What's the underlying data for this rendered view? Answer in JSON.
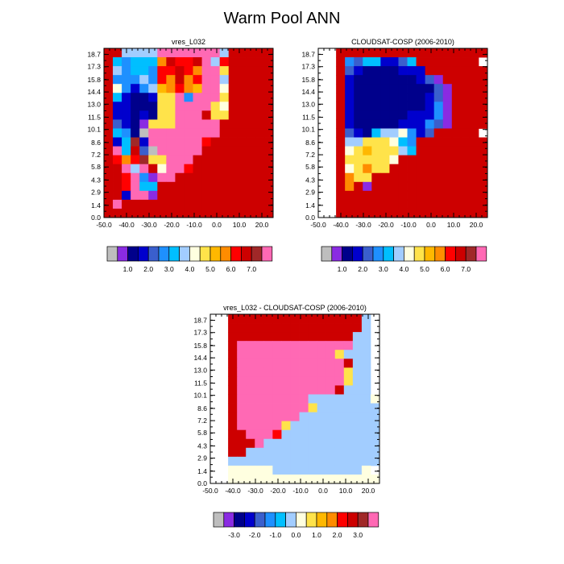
{
  "title": "Warm Pool ANN",
  "palette": [
    "#bebebe",
    "#8a2be2",
    "#00008b",
    "#0000cd",
    "#3a5fcd",
    "#1e90ff",
    "#00bfff",
    "#a2cdff",
    "#ffffe0",
    "#ffe34a",
    "#ffb800",
    "#ff8c00",
    "#ff0000",
    "#cd0000",
    "#a02828",
    "#ff69b4"
  ],
  "chart_data": [
    {
      "type": "heatmap",
      "title": "vres_L032",
      "x_ticks": [
        "-50.0",
        "-40.0",
        "-30.0",
        "-20.0",
        "-10.0",
        "0.0",
        "10.0",
        "20.0"
      ],
      "y_ticks": [
        "0.0",
        "1.4",
        "2.9",
        "4.3",
        "5.8",
        "7.2",
        "8.6",
        "10.1",
        "11.5",
        "13.0",
        "14.4",
        "15.8",
        "17.3",
        "18.7"
      ],
      "colorbar_labels": [
        "1.0",
        "2.0",
        "3.0",
        "4.0",
        "5.0",
        "6.0",
        "7.0"
      ],
      "grid": [
        "dd7777fffffff7ddddd",
        "d65666bdccdf7cddddd",
        "d75665ccdcbff9ddddd",
        "d55575cbdbcff7ddddd",
        "d85357abcbaff8ddddd",
        "d6322399f5fff9ddddd",
        "d3322299ffff98ddddd",
        "d3323299fffd99ddddd",
        "d4321999fffffdddddd",
        "d6520ffffffffdddddd",
        "d36e3ffffffcddddddd",
        "df6d40fffffdddddddd",
        "dcbce99fffddddddddd",
        "ddf7fd8ffcddddddddd",
        "ddcf51ffddddddddddd",
        "ddcf66ddddddddddddd",
        "dd3ff1ddddddddddddd",
        "dfddddddddddddddddd",
        "ddddddddddddddddddd"
      ]
    },
    {
      "type": "heatmap",
      "title": "CLOUDSAT-COSP (2006-2010)",
      "x_ticks": [
        "-50.0",
        "-40.0",
        "-30.0",
        "-20.0",
        "-10.0",
        "0.0",
        "10.0",
        "20.0"
      ],
      "y_ticks": [
        "0.0",
        "1.4",
        "2.9",
        "4.3",
        "5.8",
        "7.2",
        "8.6",
        "10.1",
        "11.5",
        "13.0",
        "14.4",
        "15.8",
        "17.3",
        "18.7"
      ],
      "colorbar_labels": [
        "1.0",
        "2.0",
        "3.0",
        "4.0",
        "5.0",
        "6.0",
        "7.0"
      ],
      "grid": [
        "..ddddddddddddddddd",
        "..d54663346ddddddd.",
        "..d432222333ddddddd",
        "..d32222222341ddddd",
        "..d322222222241dddd",
        "..d322222222341dddd",
        "..d322222222351dddd",
        "..d322222233351dddd",
        "..d322222333541dddd",
        "..d4326778534ddddd.",
        "..d77999865dddddddd",
        "..d89a99976dddddddd",
        "..d999998dddddddddd",
        "..d89b99ddddddddddd",
        "..db99ddddddddddddd",
        "..dbd1ddddddddddddd",
        "..ddddddddddddddddd",
        "..ddddddddddddddddd",
        "..ddddddddddddddddd"
      ]
    },
    {
      "type": "heatmap",
      "title": "vres_L032 - CLOUDSAT-COSP (2006-2010)",
      "x_ticks": [
        "-50.0",
        "-40.0",
        "-30.0",
        "-20.0",
        "-10.0",
        "0.0",
        "10.0",
        "20.0"
      ],
      "y_ticks": [
        "0.0",
        "1.4",
        "2.9",
        "4.3",
        "5.8",
        "7.2",
        "8.6",
        "10.1",
        "11.5",
        "13.0",
        "14.4",
        "15.8",
        "17.3",
        "18.7"
      ],
      "colorbar_labels": [
        "-3.0",
        "-2.0",
        "-1.0",
        "0.0",
        "1.0",
        "2.0",
        "3.0"
      ],
      "grid": [
        "..ddddddddddddddd7.",
        "..ddddddddddddddd7.",
        "..dddddddddddddd77.",
        "..dfffffffffffff77.",
        "..dfffffffffff9777.",
        "..dffffffffffffd77.",
        "..dffffffffffff977.",
        "..dffffffffffff977.",
        "..dfffffffffffd777.",
        "..dffffffff77777778",
        "..dffffffff97777777",
        "..dfffffff777777777",
        "..dfffff977777777777",
        "..ddfffc777777777777",
        "..dddf77777777777777",
        "..dd7777777777777777",
        "..77777777777777777.",
        "..8888877777777778..",
        "..88888888888888888."
      ]
    }
  ]
}
